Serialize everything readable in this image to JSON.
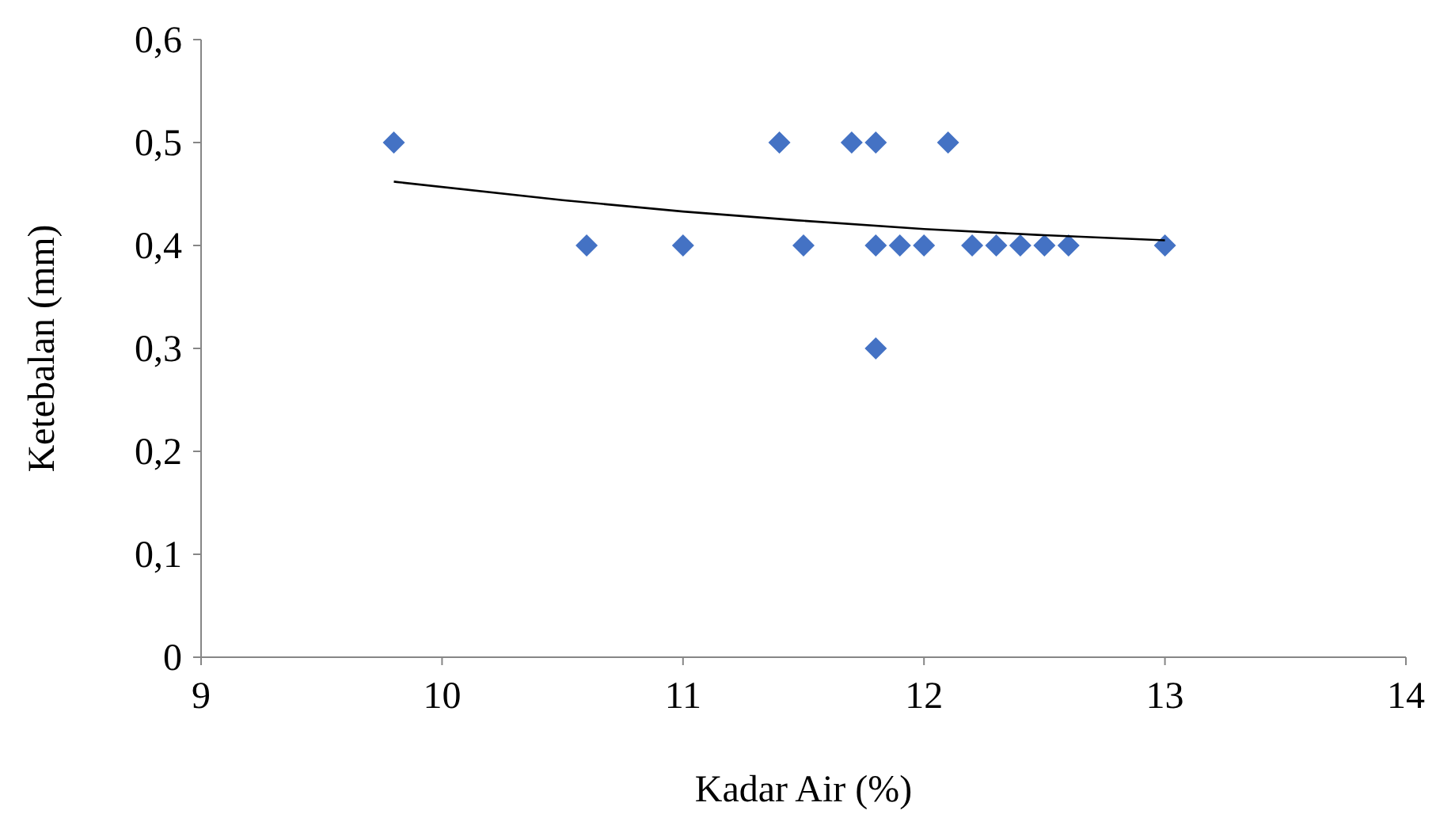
{
  "chart_data": {
    "type": "scatter",
    "xlabel": "Kadar Air (%)",
    "ylabel": "Ketebalan (mm)",
    "xlim": [
      9,
      14
    ],
    "xticks": [
      9,
      10,
      11,
      12,
      13,
      14
    ],
    "ylim": [
      0,
      0.6
    ],
    "yticks": [
      {
        "value": 0,
        "label": "0"
      },
      {
        "value": 0.1,
        "label": "0,1"
      },
      {
        "value": 0.2,
        "label": "0,2"
      },
      {
        "value": 0.3,
        "label": "0,3"
      },
      {
        "value": 0.4,
        "label": "0,4"
      },
      {
        "value": 0.5,
        "label": "0,5"
      },
      {
        "value": 0.6,
        "label": "0,6"
      }
    ],
    "grid": false,
    "series": [
      {
        "color": "#4472c4",
        "marker": "diamond",
        "x": [
          9.8,
          10.6,
          11,
          11.4,
          11.5,
          11.7,
          11.8,
          11.8,
          11.8,
          11.9,
          12,
          12.1,
          12.2,
          12.3,
          12.4,
          12.5,
          12.6,
          13
        ],
        "values": [
          0.5,
          0.4,
          0.4,
          0.5,
          0.4,
          0.5,
          0.5,
          0.4,
          0.3,
          0.4,
          0.4,
          0.5,
          0.4,
          0.4,
          0.4,
          0.4,
          0.4,
          0.4
        ]
      },
      {
        "type": "line",
        "color": "#000000",
        "line_style": "solid",
        "x": [
          9.8,
          10.5,
          11,
          11.5,
          12,
          12.5,
          13
        ],
        "values": [
          0.462,
          0.444,
          0.433,
          0.424,
          0.416,
          0.41,
          0.405
        ]
      }
    ]
  }
}
